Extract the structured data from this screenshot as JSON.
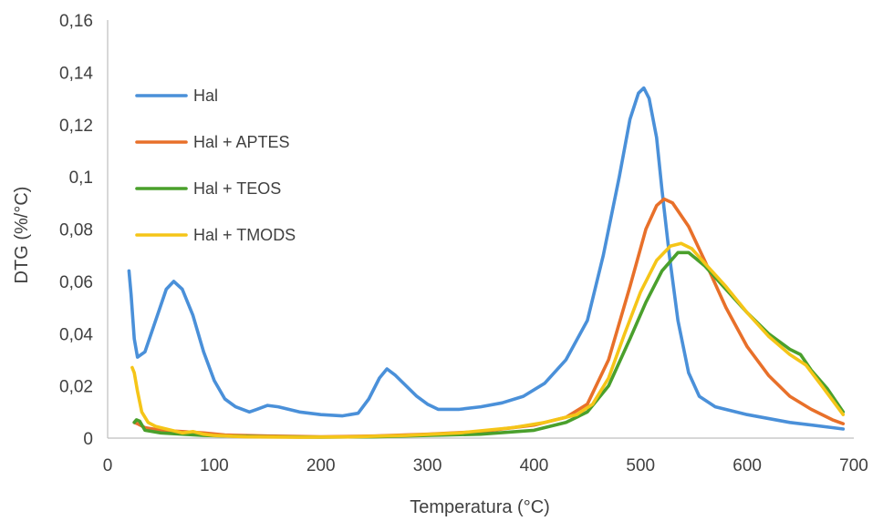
{
  "chart_data": {
    "type": "line",
    "title": "",
    "xlabel": "Temperatura (°C)",
    "ylabel": "DTG (%/°C)",
    "xlim": [
      0,
      700
    ],
    "ylim": [
      0,
      0.16
    ],
    "x_ticks": [
      0,
      100,
      200,
      300,
      400,
      500,
      600,
      700
    ],
    "x_tick_labels": [
      "0",
      "100",
      "200",
      "300",
      "400",
      "500",
      "600",
      "700"
    ],
    "y_ticks": [
      0,
      0.02,
      0.04,
      0.06,
      0.08,
      0.1,
      0.12,
      0.14,
      0.16
    ],
    "y_tick_labels": [
      "0",
      "0,02",
      "0,04",
      "0,06",
      "0,08",
      "0,1",
      "0,12",
      "0,14",
      "0,16"
    ],
    "grid": false,
    "legend_position": "upper-left",
    "series": [
      {
        "name": "Hal",
        "color": "#4a90d9",
        "points": [
          [
            20,
            0.064
          ],
          [
            22,
            0.055
          ],
          [
            25,
            0.038
          ],
          [
            28,
            0.031
          ],
          [
            35,
            0.033
          ],
          [
            45,
            0.045
          ],
          [
            55,
            0.057
          ],
          [
            62,
            0.06
          ],
          [
            70,
            0.057
          ],
          [
            80,
            0.047
          ],
          [
            90,
            0.033
          ],
          [
            100,
            0.022
          ],
          [
            110,
            0.015
          ],
          [
            120,
            0.012
          ],
          [
            133,
            0.01
          ],
          [
            140,
            0.011
          ],
          [
            150,
            0.0125
          ],
          [
            160,
            0.012
          ],
          [
            180,
            0.01
          ],
          [
            200,
            0.009
          ],
          [
            220,
            0.0085
          ],
          [
            235,
            0.0095
          ],
          [
            245,
            0.015
          ],
          [
            255,
            0.023
          ],
          [
            262,
            0.0265
          ],
          [
            270,
            0.024
          ],
          [
            280,
            0.02
          ],
          [
            290,
            0.016
          ],
          [
            300,
            0.013
          ],
          [
            310,
            0.011
          ],
          [
            330,
            0.011
          ],
          [
            350,
            0.012
          ],
          [
            370,
            0.0135
          ],
          [
            390,
            0.016
          ],
          [
            410,
            0.021
          ],
          [
            430,
            0.03
          ],
          [
            450,
            0.045
          ],
          [
            465,
            0.07
          ],
          [
            480,
            0.1
          ],
          [
            490,
            0.122
          ],
          [
            498,
            0.132
          ],
          [
            503,
            0.134
          ],
          [
            508,
            0.13
          ],
          [
            515,
            0.115
          ],
          [
            520,
            0.095
          ],
          [
            527,
            0.07
          ],
          [
            535,
            0.045
          ],
          [
            545,
            0.025
          ],
          [
            555,
            0.016
          ],
          [
            570,
            0.012
          ],
          [
            600,
            0.009
          ],
          [
            640,
            0.006
          ],
          [
            680,
            0.004
          ],
          [
            690,
            0.0035
          ]
        ]
      },
      {
        "name": "Hal + APTES",
        "color": "#e8702a",
        "points": [
          [
            25,
            0.006
          ],
          [
            28,
            0.0055
          ],
          [
            35,
            0.004
          ],
          [
            50,
            0.003
          ],
          [
            70,
            0.0025
          ],
          [
            90,
            0.002
          ],
          [
            110,
            0.0012
          ],
          [
            150,
            0.0008
          ],
          [
            200,
            0.0005
          ],
          [
            250,
            0.0008
          ],
          [
            300,
            0.0015
          ],
          [
            350,
            0.0025
          ],
          [
            400,
            0.005
          ],
          [
            430,
            0.008
          ],
          [
            450,
            0.013
          ],
          [
            470,
            0.03
          ],
          [
            490,
            0.058
          ],
          [
            505,
            0.08
          ],
          [
            515,
            0.089
          ],
          [
            522,
            0.0915
          ],
          [
            530,
            0.09
          ],
          [
            545,
            0.081
          ],
          [
            560,
            0.068
          ],
          [
            580,
            0.05
          ],
          [
            600,
            0.035
          ],
          [
            620,
            0.024
          ],
          [
            640,
            0.016
          ],
          [
            660,
            0.011
          ],
          [
            680,
            0.007
          ],
          [
            690,
            0.0055
          ]
        ]
      },
      {
        "name": "Hal + TEOS",
        "color": "#4aa02c",
        "points": [
          [
            25,
            0.006
          ],
          [
            27,
            0.007
          ],
          [
            30,
            0.0065
          ],
          [
            35,
            0.003
          ],
          [
            50,
            0.002
          ],
          [
            70,
            0.0015
          ],
          [
            90,
            0.001
          ],
          [
            110,
            0.0008
          ],
          [
            150,
            0.0005
          ],
          [
            200,
            0.0004
          ],
          [
            250,
            0.0005
          ],
          [
            300,
            0.001
          ],
          [
            350,
            0.0015
          ],
          [
            400,
            0.003
          ],
          [
            430,
            0.006
          ],
          [
            450,
            0.01
          ],
          [
            470,
            0.02
          ],
          [
            490,
            0.038
          ],
          [
            505,
            0.052
          ],
          [
            520,
            0.064
          ],
          [
            535,
            0.071
          ],
          [
            545,
            0.071
          ],
          [
            560,
            0.066
          ],
          [
            580,
            0.057
          ],
          [
            600,
            0.048
          ],
          [
            620,
            0.04
          ],
          [
            640,
            0.034
          ],
          [
            650,
            0.032
          ],
          [
            660,
            0.026
          ],
          [
            675,
            0.019
          ],
          [
            690,
            0.01
          ]
        ]
      },
      {
        "name": "Hal + TMODS",
        "color": "#f5c518",
        "points": [
          [
            23,
            0.027
          ],
          [
            25,
            0.025
          ],
          [
            28,
            0.018
          ],
          [
            32,
            0.01
          ],
          [
            38,
            0.006
          ],
          [
            45,
            0.0045
          ],
          [
            55,
            0.0035
          ],
          [
            70,
            0.002
          ],
          [
            80,
            0.0025
          ],
          [
            90,
            0.0015
          ],
          [
            100,
            0.001
          ],
          [
            130,
            0.0005
          ],
          [
            180,
            0.0003
          ],
          [
            230,
            0.0005
          ],
          [
            280,
            0.001
          ],
          [
            330,
            0.002
          ],
          [
            380,
            0.004
          ],
          [
            410,
            0.006
          ],
          [
            440,
            0.009
          ],
          [
            455,
            0.013
          ],
          [
            470,
            0.023
          ],
          [
            485,
            0.04
          ],
          [
            500,
            0.056
          ],
          [
            515,
            0.068
          ],
          [
            528,
            0.0735
          ],
          [
            538,
            0.0745
          ],
          [
            548,
            0.0725
          ],
          [
            560,
            0.067
          ],
          [
            580,
            0.058
          ],
          [
            600,
            0.048
          ],
          [
            620,
            0.039
          ],
          [
            640,
            0.032
          ],
          [
            655,
            0.028
          ],
          [
            670,
            0.02
          ],
          [
            690,
            0.009
          ]
        ]
      }
    ]
  }
}
